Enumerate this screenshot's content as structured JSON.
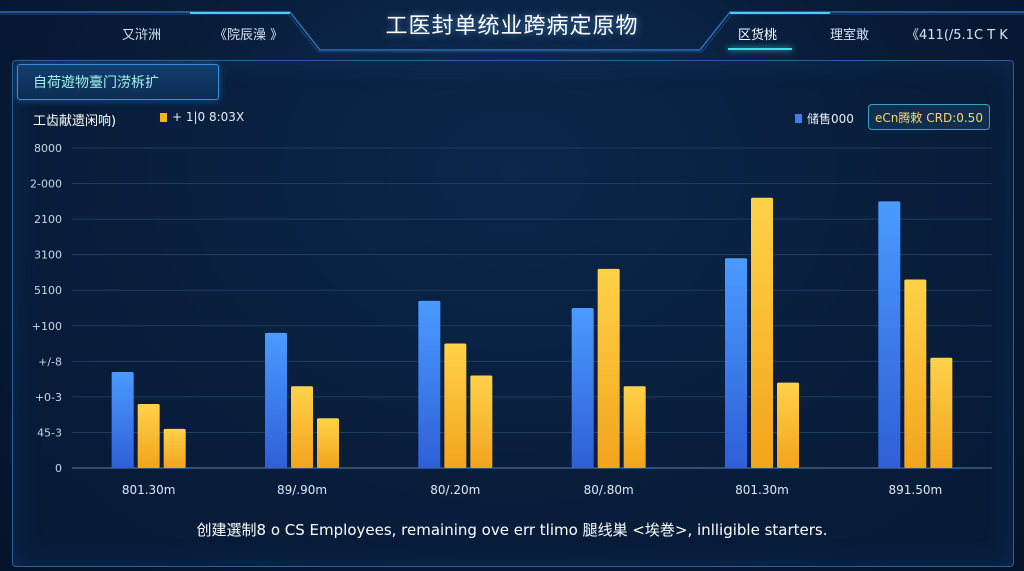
{
  "header": {
    "title": "工医封单统业跨病定原物",
    "nav_left": [
      "又浒洲",
      "《院辰澡 》"
    ],
    "nav_right": [
      "区货桃",
      "理室敢",
      "《411(/5.1C T K"
    ]
  },
  "panel": {
    "tab_label": "自荷遊物臺门涝柝扩",
    "subtitle": "工齿献遗闲响)",
    "badge": "eCn腾敕 CRD:0.50",
    "footer": "创建選制8 o CS Employees, remaining ove err tlimo 腿线巣 <埃巻>, inlligible starters."
  },
  "colors": {
    "blue": "#3d7ff0",
    "yellow": "#f5b223",
    "accent": "#3fe0e6"
  },
  "chart_data": {
    "type": "bar",
    "categories": [
      "801.30m",
      "89/.90m",
      "80/.20m",
      "80/.80m",
      "801.30m",
      "891.50m"
    ],
    "y_tick_labels": [
      "0",
      "45-3",
      "+0-3",
      "+/-8",
      "+100",
      "5100",
      "3100",
      "2100",
      "2-000",
      "8000"
    ],
    "ylim": [
      0,
      9
    ],
    "legend": [
      {
        "label": "+ 1|0 8:03X",
        "color": "#f5b223"
      },
      {
        "label": "储售000",
        "color": "#3d7ff0"
      }
    ],
    "series": [
      {
        "color": "#3d7ff0",
        "values": [
          2.7,
          3.8,
          4.7,
          4.5,
          5.9,
          7.5
        ]
      },
      {
        "color": "#f5b223",
        "values": [
          1.8,
          2.3,
          3.5,
          5.6,
          7.6,
          5.3
        ]
      },
      {
        "color": "#f5b223",
        "values": [
          1.1,
          1.4,
          2.6,
          2.3,
          2.4,
          3.1
        ]
      }
    ]
  }
}
